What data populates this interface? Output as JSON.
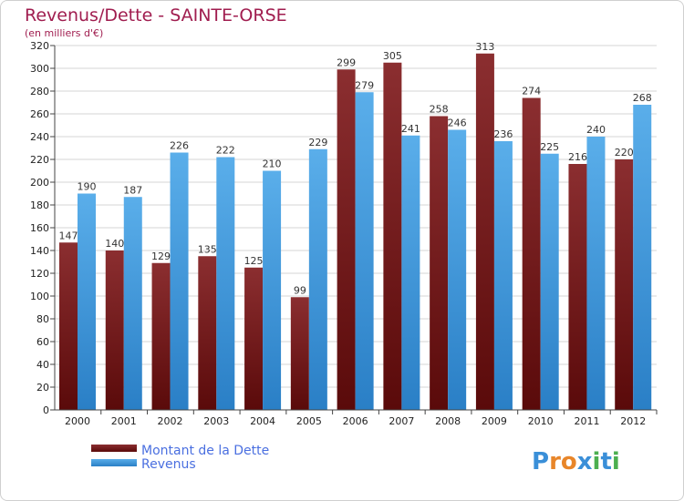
{
  "colors": {
    "title": "#a01d4f",
    "dette_dark": "#5a0a0a",
    "dette_light": "#8b2e30",
    "revenus_dark": "#2a7fc6",
    "revenus_light": "#5aaeea",
    "grid": "#d6d6d6",
    "legend_text": "#4a6fe0"
  },
  "chart_data": {
    "type": "bar",
    "title": "Revenus/Dette - SAINTE-ORSE",
    "subtitle": "(en milliers d'€)",
    "categories": [
      "2000",
      "2001",
      "2002",
      "2003",
      "2004",
      "2005",
      "2006",
      "2007",
      "2008",
      "2009",
      "2010",
      "2011",
      "2012"
    ],
    "series": [
      {
        "name": "Montant de la Dette",
        "values": [
          147,
          140,
          129,
          135,
          125,
          99,
          299,
          305,
          258,
          313,
          274,
          216,
          220
        ]
      },
      {
        "name": "Revenus",
        "values": [
          190,
          187,
          226,
          222,
          210,
          229,
          279,
          241,
          246,
          236,
          225,
          240,
          268
        ]
      }
    ],
    "ylim": [
      0,
      320
    ],
    "yticks": [
      0,
      20,
      40,
      60,
      80,
      100,
      120,
      140,
      160,
      180,
      200,
      220,
      240,
      260,
      280,
      300,
      320
    ],
    "grid": true,
    "legend_position": "bottom-left"
  },
  "logo": {
    "letters": [
      "P",
      "r",
      "o",
      "x",
      "i",
      "t",
      "i"
    ],
    "colors": [
      "#3a8fd8",
      "#e8862a",
      "#e8862a",
      "#3a8fd8",
      "#4caf50",
      "#3a8fd8",
      "#4caf50"
    ]
  }
}
